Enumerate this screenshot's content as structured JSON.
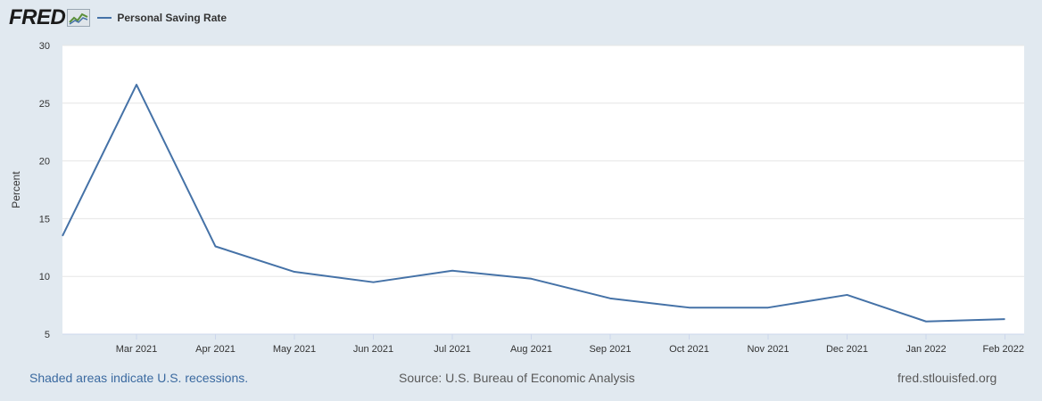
{
  "header": {
    "logo_text": "FRED",
    "legend_label": "Personal Saving Rate"
  },
  "footer": {
    "recession_note": "Shaded areas indicate U.S. recessions.",
    "source": "Source: U.S. Bureau of Economic Analysis",
    "site": "fred.stlouisfed.org"
  },
  "colors": {
    "background": "#e1e9f0",
    "plot_background": "#ffffff",
    "series": "#4572a7",
    "grid": "#e6e6e6"
  },
  "chart_data": {
    "type": "line",
    "title": "",
    "xlabel": "",
    "ylabel": "Percent",
    "ylim": [
      5,
      30
    ],
    "yticks": [
      5,
      10,
      15,
      20,
      25,
      30
    ],
    "grid": true,
    "legend": "top-left",
    "x": [
      "2021-02",
      "2021-03",
      "2021-04",
      "2021-05",
      "2021-06",
      "2021-07",
      "2021-08",
      "2021-09",
      "2021-10",
      "2021-11",
      "2021-12",
      "2022-01",
      "2022-02"
    ],
    "xtick_labels": [
      "Mar 2021",
      "Apr 2021",
      "May 2021",
      "Jun 2021",
      "Jul 2021",
      "Aug 2021",
      "Sep 2021",
      "Oct 2021",
      "Nov 2021",
      "Dec 2021",
      "Jan 2022",
      "Feb 2022"
    ],
    "series": [
      {
        "name": "Personal Saving Rate",
        "values": [
          13.5,
          26.6,
          12.6,
          10.4,
          9.5,
          10.5,
          9.8,
          8.1,
          7.3,
          7.3,
          8.4,
          6.1,
          6.3
        ]
      }
    ]
  }
}
